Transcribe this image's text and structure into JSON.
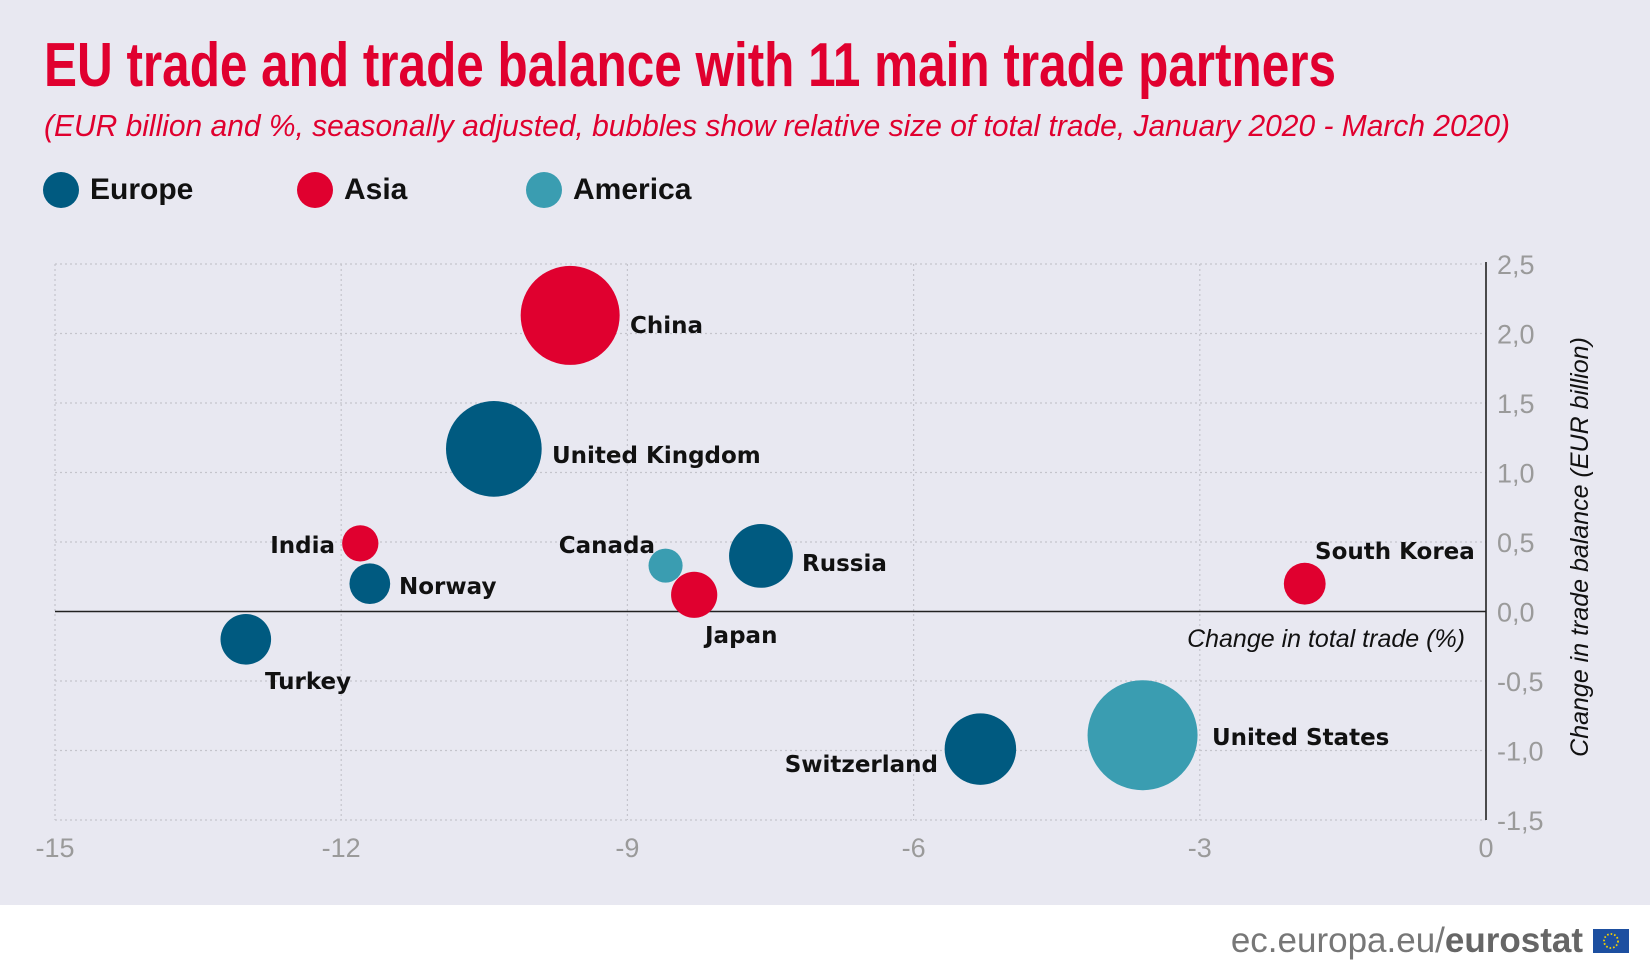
{
  "chart_data": {
    "type": "scatter",
    "title": "EU trade and trade balance with 11 main trade partners",
    "subtitle": "(EUR billion and %, seasonally adjusted, bubbles show relative size of total trade, January 2020 - March 2020)",
    "xlabel": "Change in total trade (%)",
    "ylabel": "Change in trade balance (EUR billion)",
    "xlim": [
      -15,
      0
    ],
    "ylim": [
      -1.5,
      2.5
    ],
    "x_ticks": [
      "-15",
      "-12",
      "-9",
      "-6",
      "-3",
      "0"
    ],
    "x_tick_values": [
      -15,
      -12,
      -9,
      -6,
      -3,
      0
    ],
    "y_ticks": [
      "2,5",
      "2,0",
      "1,5",
      "1,0",
      "0,5",
      "0,0",
      "-0,5",
      "-1,0",
      "-1,5"
    ],
    "y_tick_values": [
      2.5,
      2.0,
      1.5,
      1.0,
      0.5,
      0.0,
      -0.5,
      -1.0,
      -1.5
    ],
    "grid": true,
    "legend_placement": "top-left",
    "legend": [
      {
        "name": "Europe",
        "color": "#005a80"
      },
      {
        "name": "Asia",
        "color": "#e0002f"
      },
      {
        "name": "America",
        "color": "#3a9db1"
      }
    ],
    "points": [
      {
        "name": "China",
        "group": "Asia",
        "x": -9.6,
        "y": 2.13,
        "size": 0.9
      },
      {
        "name": "United Kingdom",
        "group": "Europe",
        "x": -10.4,
        "y": 1.17,
        "size": 0.87
      },
      {
        "name": "India",
        "group": "Asia",
        "x": -11.8,
        "y": 0.49,
        "size": 0.33
      },
      {
        "name": "Norway",
        "group": "Europe",
        "x": -11.7,
        "y": 0.2,
        "size": 0.37
      },
      {
        "name": "Turkey",
        "group": "Europe",
        "x": -13.0,
        "y": -0.2,
        "size": 0.46
      },
      {
        "name": "Canada",
        "group": "America",
        "x": -8.6,
        "y": 0.33,
        "size": 0.31
      },
      {
        "name": "Japan",
        "group": "Asia",
        "x": -8.3,
        "y": 0.12,
        "size": 0.42
      },
      {
        "name": "Russia",
        "group": "Europe",
        "x": -7.6,
        "y": 0.4,
        "size": 0.58
      },
      {
        "name": "South Korea",
        "group": "Asia",
        "x": -1.9,
        "y": 0.2,
        "size": 0.38
      },
      {
        "name": "Switzerland",
        "group": "Europe",
        "x": -5.3,
        "y": -0.99,
        "size": 0.65
      },
      {
        "name": "United States",
        "group": "America",
        "x": -3.6,
        "y": -0.89,
        "size": 1.0
      }
    ]
  },
  "footer": {
    "site": "ec.europa.eu/",
    "brand": "eurostat",
    "flag_icon": "eu-flag-icon"
  }
}
